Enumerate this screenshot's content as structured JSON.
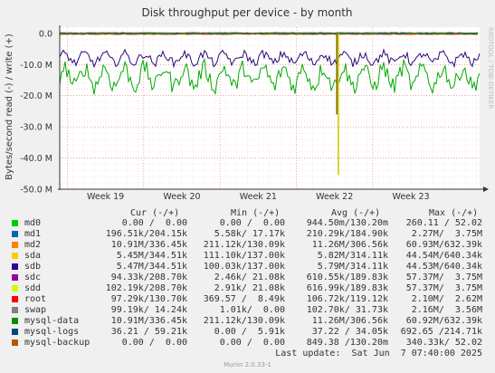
{
  "colors": {
    "plot_bg": "#ffffff",
    "grid": "#e07070",
    "read_line": "#00aa00",
    "write_line": "#2a0a78",
    "sda_spike": "#cccc00",
    "mysql_backup_spike": "#886600",
    "zero_band": [
      "#00cc00",
      "#0066b3",
      "#ff8000",
      "#ffcc00",
      "#330099",
      "#990099",
      "#ccff00",
      "#ff0000",
      "#808080",
      "#008f00",
      "#00487d",
      "#b35a00"
    ]
  },
  "chart_data": {
    "type": "line",
    "title": "Disk throughput per device - by month",
    "ylabel": "Bytes/second read (-) / write (+)",
    "side_label": "RRDTOOL / TOBI OETIKER",
    "ylim": [
      -50,
      2
    ],
    "y_ticks": [
      0,
      -10,
      -20,
      -30,
      -40,
      -50
    ],
    "y_tick_labels": [
      "0.0",
      "-10.0 M",
      "-20.0 M",
      "-30.0 M",
      "-40.0 M",
      "-50.0 M"
    ],
    "x_range_weeks": [
      18.4,
      23.9
    ],
    "x_ticks": [
      19,
      20,
      21,
      22,
      23
    ],
    "x_tick_labels": [
      "Week 19",
      "Week 20",
      "Week 21",
      "Week 22",
      "Week 23"
    ],
    "grid": true,
    "series": [
      {
        "name": "mysql-data",
        "direction": "read",
        "color_key": "read_line",
        "pattern": {
          "baseline": -14,
          "amplitude": 5,
          "min": -24,
          "max": -7
        }
      },
      {
        "name": "sdb",
        "direction": "read",
        "color_key": "write_line",
        "pattern": {
          "baseline": -8,
          "amplitude": 2.5,
          "min": -14,
          "max": -4
        }
      },
      {
        "name": "sda",
        "direction": "read",
        "spike": {
          "week": 22.05,
          "value": -45.5
        },
        "color_key": "sda_spike"
      },
      {
        "name": "mysql-backup",
        "direction": "read",
        "spike": {
          "week": 22.03,
          "value": -26
        },
        "color_key": "mysql_backup_spike"
      }
    ]
  },
  "legend": {
    "headers": {
      "cur": "Cur (-/+)",
      "min": "Min (-/+)",
      "avg": "Avg (-/+)",
      "max": "Max (-/+)"
    },
    "rows": [
      {
        "name": "md0",
        "color": "#00cc00",
        "cur": "0.00 /  0.00",
        "min": "0.00 /  0.00",
        "avg": "944.50m/130.20m",
        "max": "260.11 / 52.02"
      },
      {
        "name": "md1",
        "color": "#0066b3",
        "cur": "196.51k/204.15k",
        "min": "5.58k/ 17.17k",
        "avg": "210.29k/184.90k",
        "max": "2.27M/  3.75M"
      },
      {
        "name": "md2",
        "color": "#ff8000",
        "cur": "10.91M/336.45k",
        "min": "211.12k/130.09k",
        "avg": "11.26M/306.56k",
        "max": "60.93M/632.39k"
      },
      {
        "name": "sda",
        "color": "#ffcc00",
        "cur": "5.45M/344.51k",
        "min": "111.10k/137.00k",
        "avg": "5.82M/314.11k",
        "max": "44.54M/640.34k"
      },
      {
        "name": "sdb",
        "color": "#330099",
        "cur": "5.47M/344.51k",
        "min": "100.03k/137.00k",
        "avg": "5.79M/314.11k",
        "max": "44.53M/640.34k"
      },
      {
        "name": "sdc",
        "color": "#990099",
        "cur": "94.33k/208.70k",
        "min": "2.46k/ 21.08k",
        "avg": "610.55k/189.83k",
        "max": "57.37M/  3.75M"
      },
      {
        "name": "sdd",
        "color": "#ccff00",
        "cur": "102.19k/208.70k",
        "min": "2.91k/ 21.08k",
        "avg": "616.99k/189.83k",
        "max": "57.37M/  3.75M"
      },
      {
        "name": "root",
        "color": "#ff0000",
        "cur": "97.29k/130.70k",
        "min": "369.57 /  8.49k",
        "avg": "106.72k/119.12k",
        "max": "2.10M/  2.62M"
      },
      {
        "name": "swap",
        "color": "#808080",
        "cur": "99.19k/ 14.24k",
        "min": "1.01k/  0.00",
        "avg": "102.70k/ 31.73k",
        "max": "2.16M/  3.56M"
      },
      {
        "name": "mysql-data",
        "color": "#008f00",
        "cur": "10.91M/336.45k",
        "min": "211.12k/130.09k",
        "avg": "11.26M/306.56k",
        "max": "60.92M/632.39k"
      },
      {
        "name": "mysql-logs",
        "color": "#00487d",
        "cur": "36.21 / 59.21k",
        "min": "0.00 /  5.91k",
        "avg": "37.22 / 34.05k",
        "max": "692.65 /214.71k"
      },
      {
        "name": "mysql-backup",
        "color": "#b35a00",
        "cur": "0.00 /  0.00",
        "min": "0.00 /  0.00",
        "avg": "849.38 /130.20m",
        "max": "340.33k/ 52.02"
      }
    ]
  },
  "last_update": "Last update:  Sat Jun  7 07:40:00 2025",
  "footer": "Munin 2.0.33-1"
}
